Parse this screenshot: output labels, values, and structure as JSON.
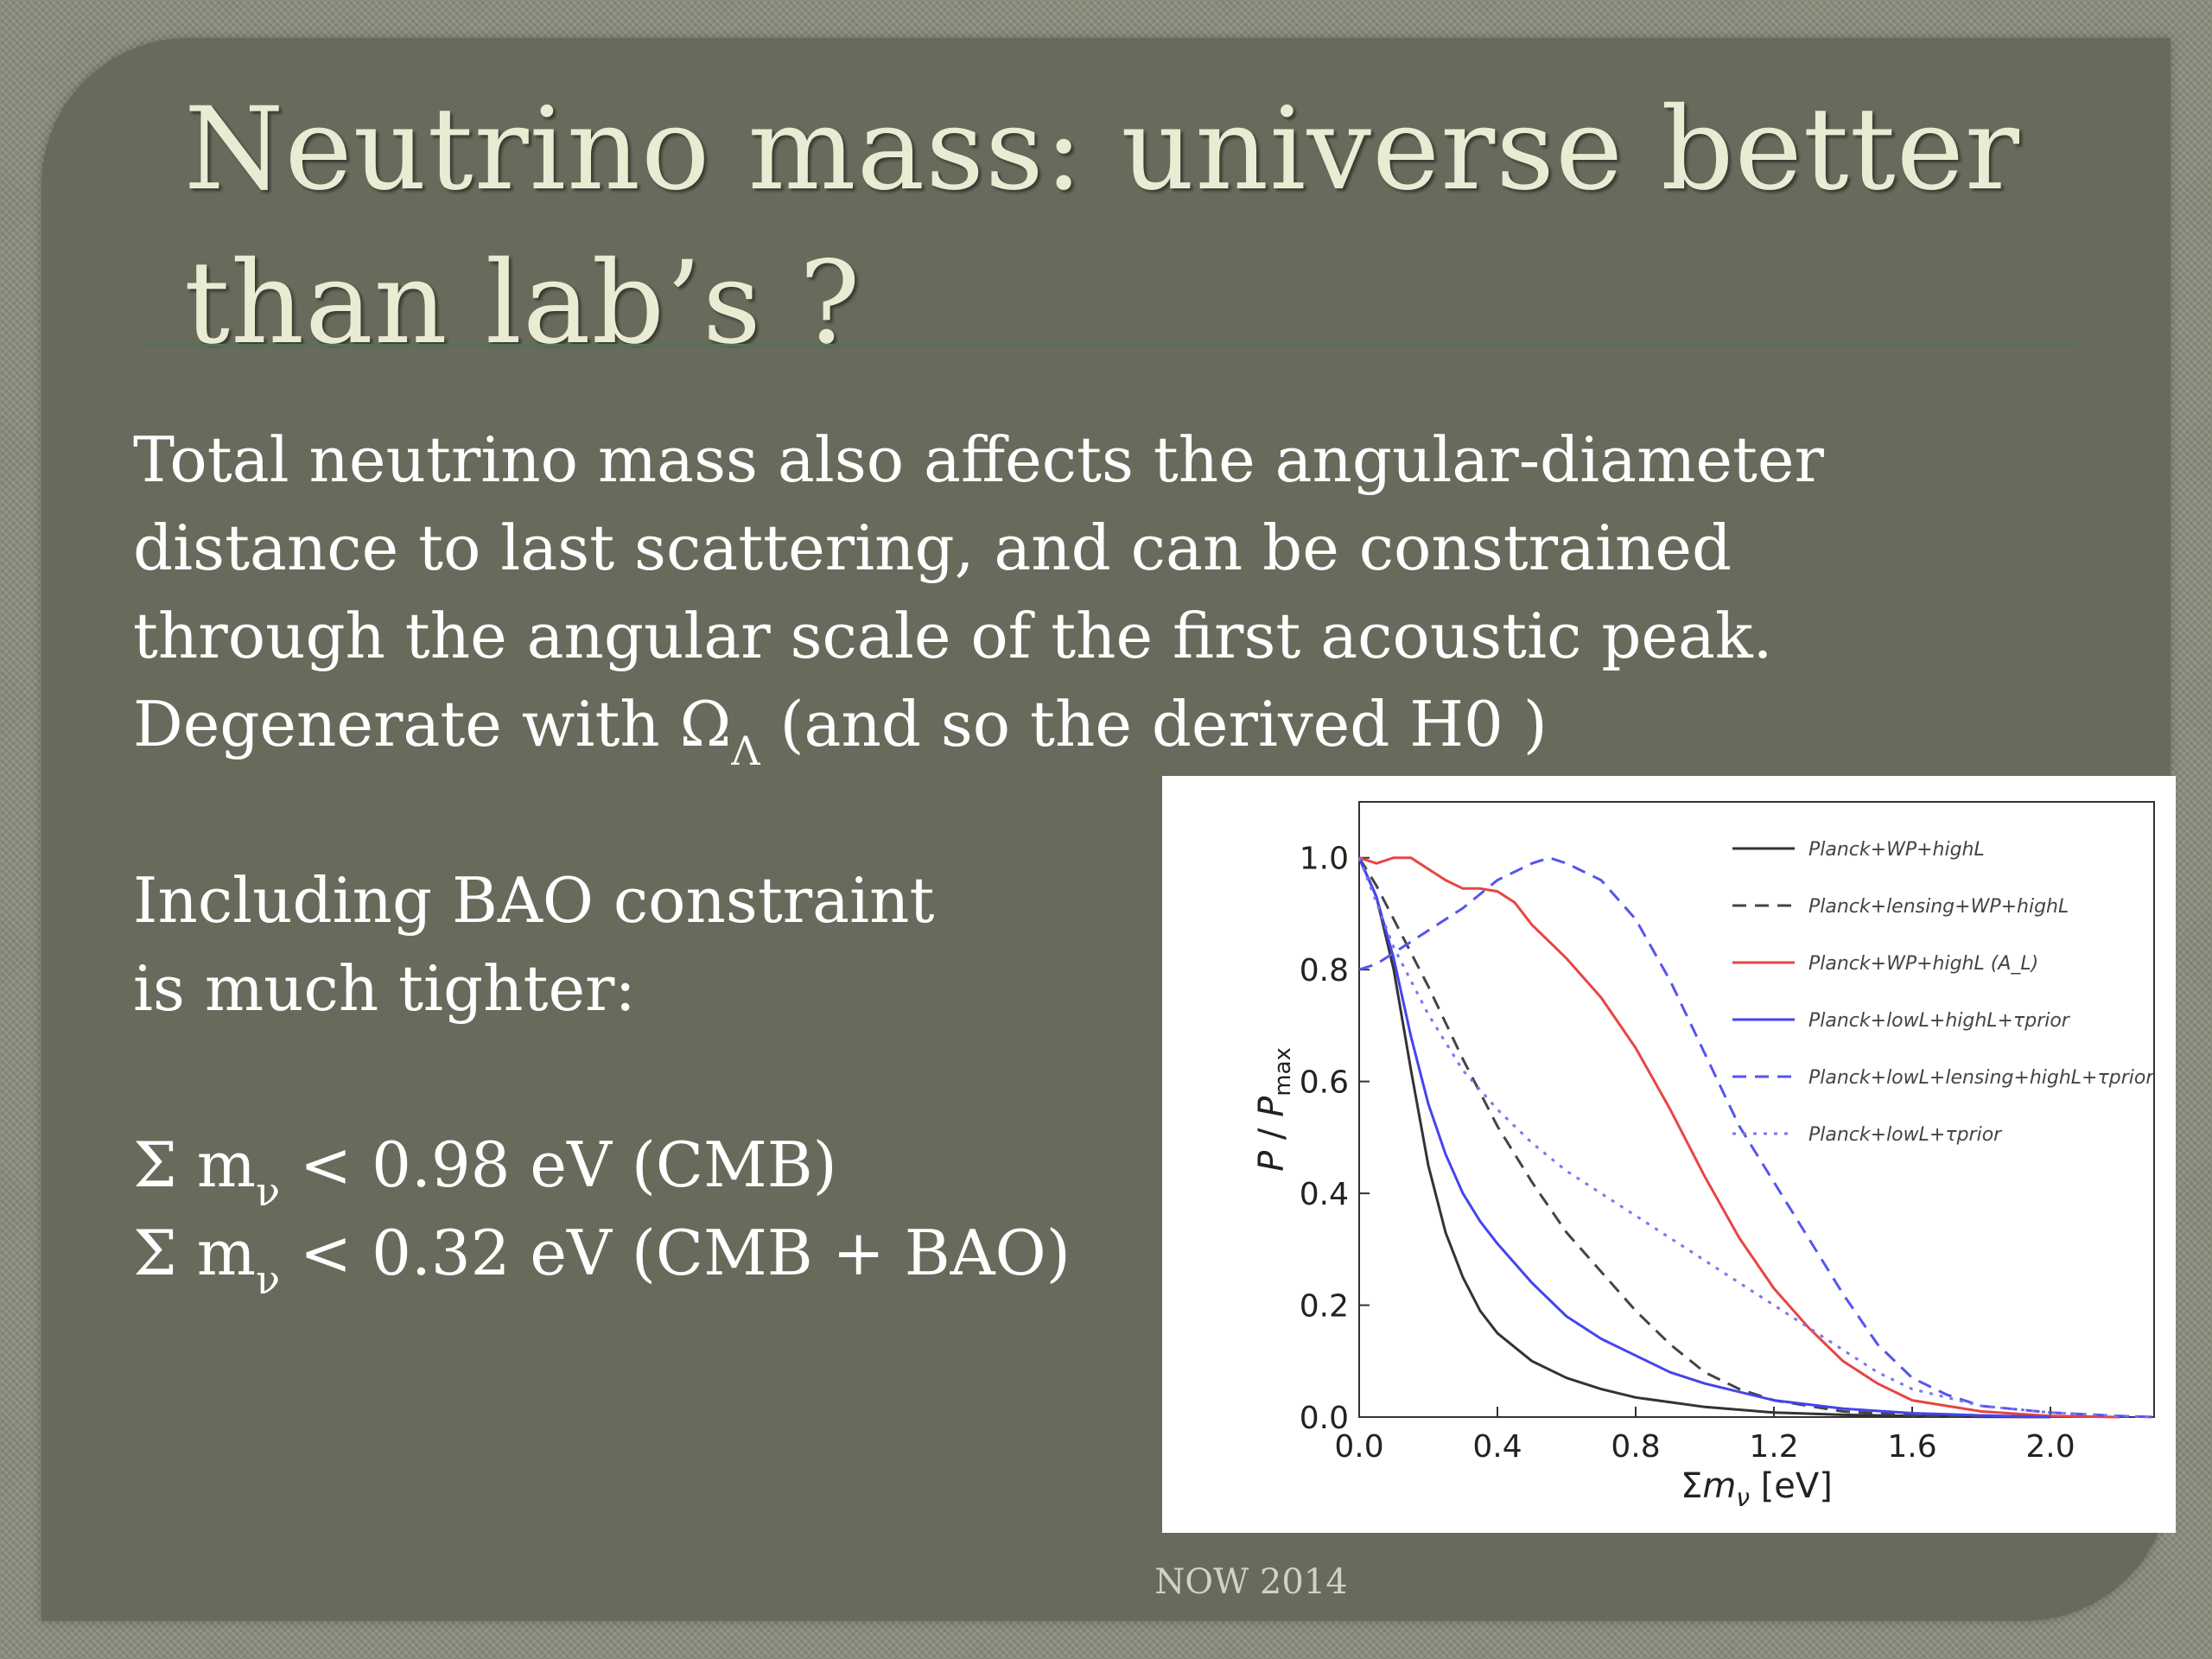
{
  "slide": {
    "title_line1": "Neutrino mass: universe better",
    "title_line2": "than lab’s ?",
    "paragraph_lines": [
      "Total neutrino mass also affects the angular-diameter",
      "distance to last scattering, and can be constrained",
      "through the angular scale of the first acoustic peak."
    ],
    "degenerate_prefix": "Degenerate with Ω",
    "degenerate_sub": "Λ",
    "degenerate_suffix": " (and so the derived H0 )",
    "bao_line1": "Including BAO constraint",
    "bao_line2": "is much tighter:",
    "limit1_prefix": "Σ m",
    "limit1_sub": "ν",
    "limit1_suffix": " < 0.98 eV  (CMB)",
    "limit2_prefix": "Σ m",
    "limit2_sub": "ν",
    "limit2_suffix": " < 0.32 eV  (CMB + BAO)",
    "footer": "NOW 2014"
  },
  "chart_data": {
    "type": "line",
    "xlabel": "Σm_ν [eV]",
    "ylabel": "P/P_max",
    "xlim": [
      0.0,
      2.3
    ],
    "ylim": [
      0.0,
      1.1
    ],
    "xticks": [
      "0.0",
      "0.4",
      "0.8",
      "1.2",
      "1.6",
      "2.0"
    ],
    "xtick_values": [
      0.0,
      0.4,
      0.8,
      1.2,
      1.6,
      2.0
    ],
    "yticks": [
      "0.0",
      "0.2",
      "0.4",
      "0.6",
      "0.8",
      "1.0"
    ],
    "ytick_values": [
      0.0,
      0.2,
      0.4,
      0.6,
      0.8,
      1.0
    ],
    "legend_position": "top-right",
    "series": [
      {
        "name": "Planck+WP+highL",
        "color": "#333333",
        "dash": "solid",
        "points": [
          [
            0,
            1.0
          ],
          [
            0.05,
            0.93
          ],
          [
            0.1,
            0.8
          ],
          [
            0.15,
            0.62
          ],
          [
            0.2,
            0.45
          ],
          [
            0.25,
            0.33
          ],
          [
            0.3,
            0.25
          ],
          [
            0.35,
            0.19
          ],
          [
            0.4,
            0.15
          ],
          [
            0.5,
            0.1
          ],
          [
            0.6,
            0.07
          ],
          [
            0.7,
            0.05
          ],
          [
            0.8,
            0.035
          ],
          [
            1.0,
            0.018
          ],
          [
            1.2,
            0.008
          ],
          [
            1.4,
            0.004
          ],
          [
            1.7,
            0.001
          ],
          [
            2.0,
            0.0
          ]
        ]
      },
      {
        "name": "Planck+lensing+WP+highL",
        "color": "#444444",
        "dash": "dashed",
        "points": [
          [
            0,
            1.0
          ],
          [
            0.05,
            0.95
          ],
          [
            0.1,
            0.89
          ],
          [
            0.2,
            0.77
          ],
          [
            0.3,
            0.64
          ],
          [
            0.4,
            0.52
          ],
          [
            0.5,
            0.42
          ],
          [
            0.6,
            0.33
          ],
          [
            0.7,
            0.26
          ],
          [
            0.8,
            0.19
          ],
          [
            0.9,
            0.13
          ],
          [
            1.0,
            0.08
          ],
          [
            1.1,
            0.05
          ],
          [
            1.2,
            0.03
          ],
          [
            1.4,
            0.01
          ],
          [
            1.6,
            0.003
          ],
          [
            2.0,
            0.0
          ]
        ]
      },
      {
        "name": "Planck+WP+highL (A_L)",
        "color": "#e84444",
        "dash": "solid",
        "points": [
          [
            0,
            1.0
          ],
          [
            0.05,
            0.99
          ],
          [
            0.1,
            1.0
          ],
          [
            0.15,
            1.0
          ],
          [
            0.2,
            0.98
          ],
          [
            0.25,
            0.96
          ],
          [
            0.3,
            0.945
          ],
          [
            0.35,
            0.945
          ],
          [
            0.4,
            0.94
          ],
          [
            0.45,
            0.92
          ],
          [
            0.5,
            0.88
          ],
          [
            0.6,
            0.82
          ],
          [
            0.7,
            0.75
          ],
          [
            0.8,
            0.66
          ],
          [
            0.9,
            0.55
          ],
          [
            1.0,
            0.43
          ],
          [
            1.1,
            0.32
          ],
          [
            1.2,
            0.23
          ],
          [
            1.3,
            0.16
          ],
          [
            1.4,
            0.1
          ],
          [
            1.5,
            0.06
          ],
          [
            1.6,
            0.03
          ],
          [
            1.8,
            0.01
          ],
          [
            2.0,
            0.002
          ],
          [
            2.2,
            0.0
          ]
        ]
      },
      {
        "name": "Planck+lowL+highL+τprior",
        "color": "#4444ee",
        "dash": "solid",
        "points": [
          [
            0,
            1.0
          ],
          [
            0.05,
            0.93
          ],
          [
            0.1,
            0.82
          ],
          [
            0.15,
            0.68
          ],
          [
            0.2,
            0.56
          ],
          [
            0.25,
            0.47
          ],
          [
            0.3,
            0.4
          ],
          [
            0.35,
            0.35
          ],
          [
            0.4,
            0.31
          ],
          [
            0.5,
            0.24
          ],
          [
            0.6,
            0.18
          ],
          [
            0.7,
            0.14
          ],
          [
            0.8,
            0.11
          ],
          [
            0.9,
            0.08
          ],
          [
            1.0,
            0.06
          ],
          [
            1.2,
            0.03
          ],
          [
            1.4,
            0.015
          ],
          [
            1.6,
            0.007
          ],
          [
            1.8,
            0.003
          ],
          [
            2.0,
            0.0
          ]
        ]
      },
      {
        "name": "Planck+lowL+lensing+highL+τprior",
        "color": "#5555ee",
        "dash": "dashed",
        "points": [
          [
            0,
            0.8
          ],
          [
            0.05,
            0.81
          ],
          [
            0.1,
            0.83
          ],
          [
            0.2,
            0.87
          ],
          [
            0.3,
            0.91
          ],
          [
            0.4,
            0.96
          ],
          [
            0.5,
            0.99
          ],
          [
            0.55,
            1.0
          ],
          [
            0.6,
            0.99
          ],
          [
            0.7,
            0.96
          ],
          [
            0.8,
            0.89
          ],
          [
            0.9,
            0.78
          ],
          [
            1.0,
            0.65
          ],
          [
            1.1,
            0.52
          ],
          [
            1.2,
            0.42
          ],
          [
            1.3,
            0.32
          ],
          [
            1.4,
            0.22
          ],
          [
            1.5,
            0.13
          ],
          [
            1.6,
            0.07
          ],
          [
            1.7,
            0.04
          ],
          [
            1.8,
            0.02
          ],
          [
            2.0,
            0.008
          ],
          [
            2.2,
            0.002
          ],
          [
            2.3,
            0.0
          ]
        ]
      },
      {
        "name": "Planck+lowL+τprior",
        "color": "#7777ee",
        "dash": "dotted",
        "points": [
          [
            0,
            1.0
          ],
          [
            0.05,
            0.92
          ],
          [
            0.1,
            0.84
          ],
          [
            0.2,
            0.72
          ],
          [
            0.3,
            0.62
          ],
          [
            0.4,
            0.55
          ],
          [
            0.5,
            0.49
          ],
          [
            0.6,
            0.44
          ],
          [
            0.7,
            0.4
          ],
          [
            0.8,
            0.36
          ],
          [
            0.9,
            0.32
          ],
          [
            1.0,
            0.28
          ],
          [
            1.1,
            0.24
          ],
          [
            1.2,
            0.2
          ],
          [
            1.3,
            0.16
          ],
          [
            1.4,
            0.12
          ],
          [
            1.5,
            0.08
          ],
          [
            1.6,
            0.05
          ],
          [
            1.8,
            0.02
          ],
          [
            2.0,
            0.008
          ],
          [
            2.2,
            0.002
          ],
          [
            2.3,
            0.0
          ]
        ]
      }
    ]
  }
}
